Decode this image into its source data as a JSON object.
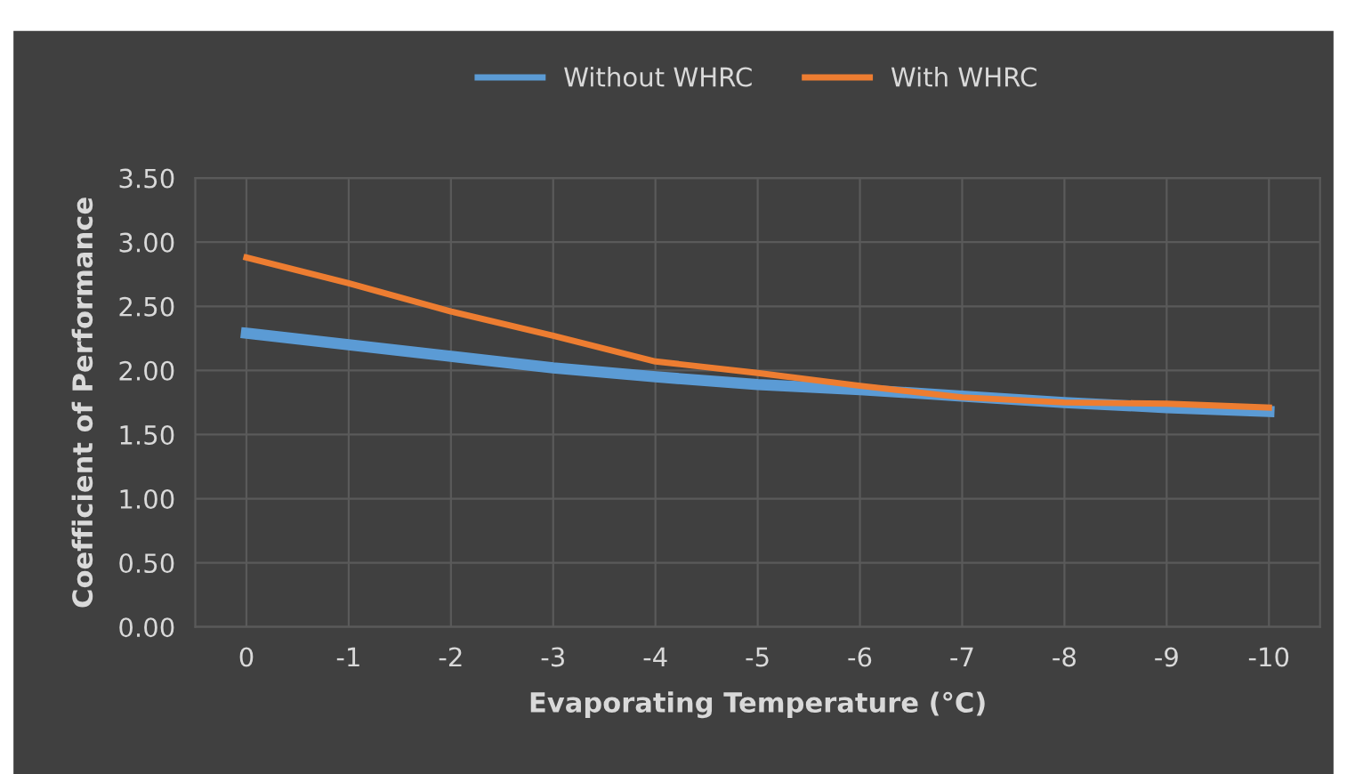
{
  "chart_data": {
    "type": "line",
    "xlabel": "Evaporating Temperature (°C)",
    "ylabel": "Coefficient of Performance",
    "categories": [
      "0",
      "-1",
      "-2",
      "-3",
      "-4",
      "-5",
      "-6",
      "-7",
      "-8",
      "-9",
      "-10"
    ],
    "series": [
      {
        "name": "Without WHRC",
        "color": "#5b9bd5",
        "values": [
          2.29,
          2.2,
          2.11,
          2.02,
          1.95,
          1.89,
          1.85,
          1.8,
          1.75,
          1.71,
          1.68
        ]
      },
      {
        "name": "With WHRC",
        "color": "#ed7d31",
        "values": [
          2.88,
          2.68,
          2.46,
          2.27,
          2.07,
          1.98,
          1.88,
          1.79,
          1.75,
          1.74,
          1.71
        ]
      }
    ],
    "ylim": [
      0,
      3.5
    ],
    "yticks": [
      {
        "value": 0,
        "label": "0.00"
      },
      {
        "value": 0.5,
        "label": "0.50"
      },
      {
        "value": 1,
        "label": "1.00"
      },
      {
        "value": 1.5,
        "label": "1.50"
      },
      {
        "value": 2,
        "label": "2.00"
      },
      {
        "value": 2.5,
        "label": "2.50"
      },
      {
        "value": 3,
        "label": "3.00"
      },
      {
        "value": 3.5,
        "label": "3.50"
      }
    ],
    "grid": true,
    "legend": "top",
    "marker": "none",
    "line_style": "solid"
  }
}
